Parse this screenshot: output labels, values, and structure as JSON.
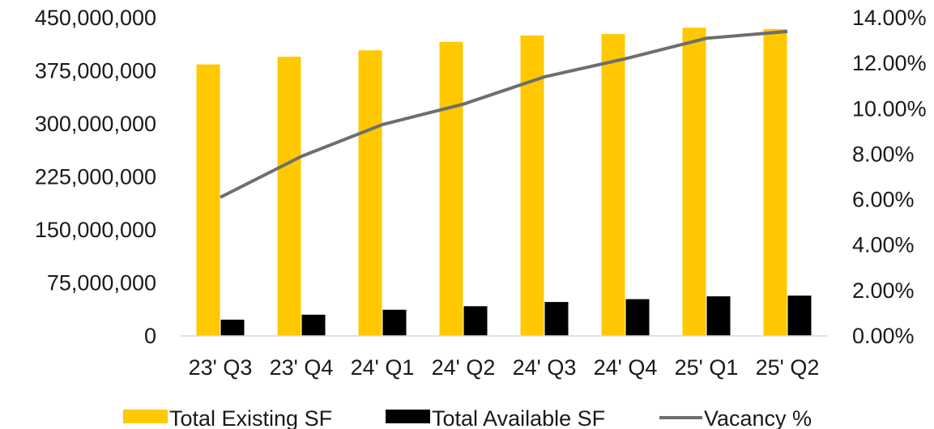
{
  "chart_data": {
    "type": "bar",
    "categories": [
      "23' Q3",
      "23' Q4",
      "24' Q1",
      "24' Q2",
      "24' Q3",
      "24' Q4",
      "25' Q1",
      "25' Q2"
    ],
    "series": [
      {
        "name": "Total Existing SF",
        "kind": "bar",
        "axis": "left",
        "color": "#FFC800",
        "values": [
          384000000,
          395000000,
          404000000,
          416000000,
          425000000,
          427000000,
          436000000,
          434000000
        ]
      },
      {
        "name": "Total Available SF",
        "kind": "bar",
        "axis": "left",
        "color": "#000000",
        "values": [
          23000000,
          30000000,
          37000000,
          42000000,
          48000000,
          52000000,
          56000000,
          57000000
        ]
      },
      {
        "name": "Vacancy %",
        "kind": "line",
        "axis": "right",
        "color": "#6E6E6E",
        "values": [
          6.1,
          7.9,
          9.3,
          10.2,
          11.4,
          12.2,
          13.1,
          13.4
        ]
      }
    ],
    "y_left": {
      "ylim": [
        0,
        450000000
      ],
      "ticks": [
        0,
        75000000,
        150000000,
        225000000,
        300000000,
        375000000,
        450000000
      ],
      "tick_labels": [
        "0",
        "75,000,000",
        "150,000,000",
        "225,000,000",
        "300,000,000",
        "375,000,000",
        "450,000,000"
      ]
    },
    "y_right": {
      "ylim": [
        0,
        14
      ],
      "ticks": [
        0,
        2,
        4,
        6,
        8,
        10,
        12,
        14
      ],
      "tick_labels": [
        "0.00%",
        "2.00%",
        "4.00%",
        "6.00%",
        "8.00%",
        "10.00%",
        "12.00%",
        "14.00%"
      ]
    },
    "title": "",
    "xlabel": "",
    "ylabel": "",
    "grid": false,
    "legend_position": "bottom-center"
  }
}
